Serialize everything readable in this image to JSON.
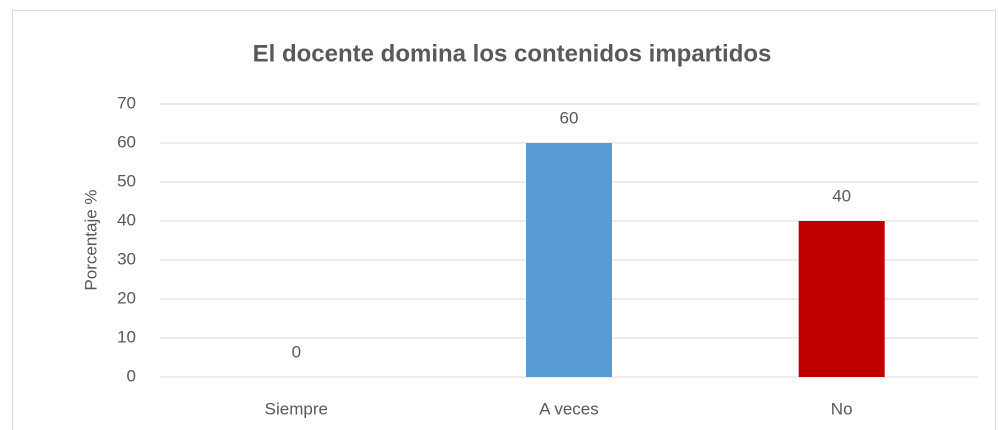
{
  "chart_data": {
    "type": "bar",
    "title": "El docente domina los contenidos impartidos",
    "ylabel": "Porcentaje %",
    "categories": [
      "Siempre",
      "A veces",
      "No"
    ],
    "values": [
      0,
      60,
      40
    ],
    "colors": [
      null,
      "#5b9bd5",
      "#c00000"
    ],
    "ylim": [
      0,
      70
    ],
    "yticks": [
      0,
      10,
      20,
      30,
      40,
      50,
      60,
      70
    ],
    "grid": true
  }
}
